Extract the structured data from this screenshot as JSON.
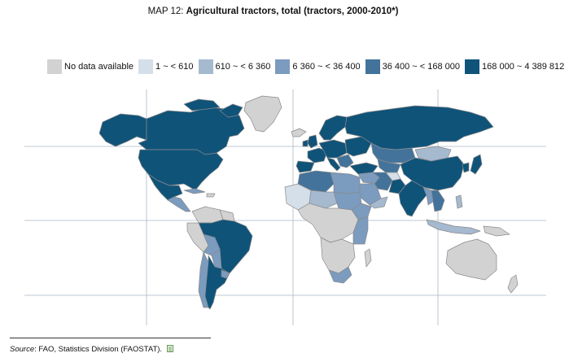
{
  "title": {
    "label": "MAP 12: ",
    "text": "Agricultural tractors, total (tractors, 2000-2010*)"
  },
  "legend": [
    {
      "label": "No data available",
      "color": "#d2d2d2"
    },
    {
      "label": "1 ~ < 610",
      "color": "#d4dfe9"
    },
    {
      "label": "610 ~ < 6 360",
      "color": "#a5b9cf"
    },
    {
      "label": "6 360 ~ < 36 400",
      "color": "#7b9bbf"
    },
    {
      "label": "36 400 ~ < 168 000",
      "color": "#43739b"
    },
    {
      "label": "168 000 ~ 4 389 812",
      "color": "#0f5379"
    }
  ],
  "source": {
    "label": "Source",
    "text": ": FAO, Statistics Division (FAOSTAT).",
    "icon": "spreadsheet-icon"
  },
  "colors": {
    "border": "#8a8a8a",
    "graticule": "#aab8c8"
  }
}
